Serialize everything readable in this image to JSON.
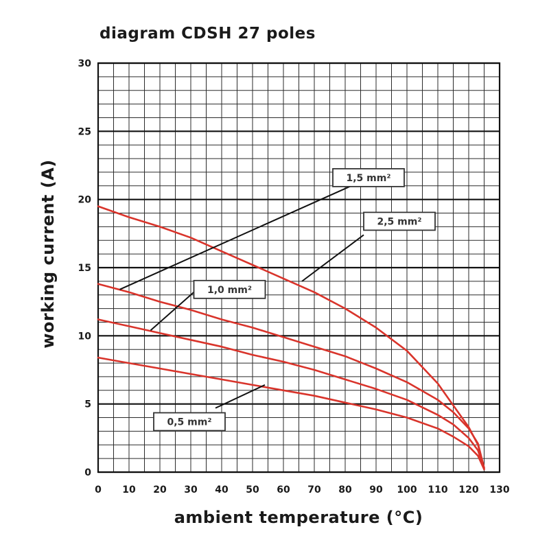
{
  "chart_data": {
    "type": "line",
    "title": "diagram CDSH 27 poles",
    "xlabel": "ambient temperature (°C)",
    "ylabel": "working current (A)",
    "xlim": [
      0,
      130
    ],
    "ylim": [
      0,
      30
    ],
    "xticks": [
      0,
      10,
      20,
      30,
      40,
      50,
      60,
      70,
      80,
      90,
      100,
      110,
      120,
      130
    ],
    "yticks": [
      0,
      5,
      10,
      15,
      20,
      25,
      30
    ],
    "grid": true,
    "series": [
      {
        "name": "2,5 mm²",
        "x": [
          0,
          10,
          20,
          30,
          40,
          50,
          60,
          70,
          80,
          90,
          100,
          110,
          115,
          120,
          123,
          125
        ],
        "y": [
          19.5,
          18.7,
          18.0,
          17.2,
          16.2,
          15.2,
          14.2,
          13.2,
          12.0,
          10.6,
          8.9,
          6.5,
          4.9,
          3.3,
          2.0,
          0.3
        ]
      },
      {
        "name": "1,5 mm²",
        "x": [
          0,
          10,
          20,
          30,
          40,
          50,
          60,
          70,
          80,
          90,
          100,
          110,
          115,
          120,
          123,
          125
        ],
        "y": [
          13.8,
          13.2,
          12.5,
          11.9,
          11.2,
          10.6,
          9.9,
          9.2,
          8.5,
          7.6,
          6.6,
          5.3,
          4.4,
          3.2,
          2.1,
          0.3
        ]
      },
      {
        "name": "1,0 mm²",
        "x": [
          0,
          10,
          20,
          30,
          40,
          50,
          60,
          70,
          80,
          90,
          100,
          110,
          115,
          120,
          123,
          125
        ],
        "y": [
          11.2,
          10.7,
          10.2,
          9.7,
          9.2,
          8.6,
          8.1,
          7.5,
          6.8,
          6.1,
          5.3,
          4.2,
          3.5,
          2.5,
          1.6,
          0.2
        ]
      },
      {
        "name": "0,5 mm²",
        "x": [
          0,
          10,
          20,
          30,
          40,
          50,
          60,
          70,
          80,
          90,
          100,
          110,
          115,
          120,
          123,
          125
        ],
        "y": [
          8.4,
          8.0,
          7.6,
          7.2,
          6.8,
          6.4,
          6.0,
          5.6,
          5.1,
          4.6,
          4.0,
          3.2,
          2.6,
          1.9,
          1.2,
          0.2
        ]
      }
    ],
    "annotations": [
      "1,5 mm²",
      "2,5 mm²",
      "1,0 mm²",
      "0,5 mm²"
    ],
    "line_color": "#d9342b"
  }
}
